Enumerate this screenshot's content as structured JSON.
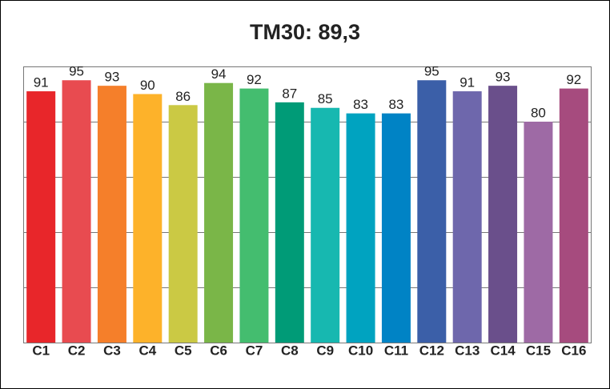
{
  "chart_data": {
    "type": "bar",
    "title": "TM30: 89,3",
    "categories": [
      "C1",
      "C2",
      "C3",
      "C4",
      "C5",
      "C6",
      "C7",
      "C8",
      "C9",
      "C10",
      "C11",
      "C12",
      "C13",
      "C14",
      "C15",
      "C16"
    ],
    "values": [
      91,
      95,
      93,
      90,
      86,
      94,
      92,
      87,
      85,
      83,
      83,
      95,
      91,
      93,
      80,
      92
    ],
    "colors": [
      "#e8262a",
      "#e84b50",
      "#f57f2a",
      "#fdb22a",
      "#cbc944",
      "#7ab648",
      "#44bd6f",
      "#009b77",
      "#17b8b0",
      "#00a3c0",
      "#0083c5",
      "#3b5fa8",
      "#6e67ac",
      "#6a4f8b",
      "#9e6aa5",
      "#a64b7e"
    ],
    "ylim": [
      0,
      100
    ],
    "yticks": [
      0,
      20,
      40,
      60,
      80,
      100
    ],
    "grid": true
  }
}
